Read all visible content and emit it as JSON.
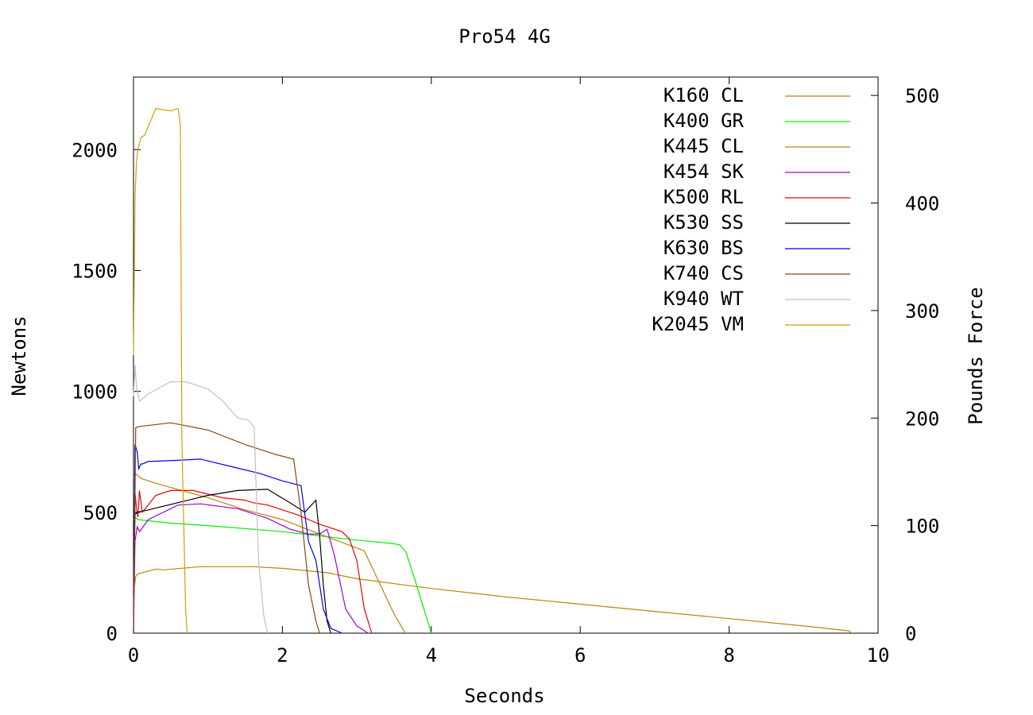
{
  "chart_data": {
    "type": "line",
    "title": "Pro54 4G",
    "xlabel": "Seconds",
    "ylabel": "Newtons",
    "y2label": "Pounds Force",
    "xlim": [
      0,
      10
    ],
    "ylim": [
      0,
      2300
    ],
    "y2lim": [
      0,
      517.1
    ],
    "xticks": [
      0,
      2,
      4,
      6,
      8,
      10
    ],
    "yticks": [
      0,
      500,
      1000,
      1500,
      2000
    ],
    "y2ticks": [
      0,
      100,
      200,
      300,
      400,
      500
    ],
    "grid": false,
    "legend_position": "top-right",
    "series": [
      {
        "name": "K160 CL",
        "color": "#b8860b",
        "x": [
          0,
          0.03,
          0.06,
          0.3,
          0.4,
          0.9,
          1.6,
          2.0,
          2.6,
          3.0,
          4.0,
          5.0,
          6.0,
          7.0,
          8.0,
          9.0,
          9.6,
          9.65
        ],
        "y": [
          170,
          235,
          245,
          265,
          262,
          275,
          275,
          268,
          250,
          225,
          185,
          150,
          120,
          90,
          60,
          30,
          10,
          0
        ]
      },
      {
        "name": "K400 GR",
        "color": "#00ee00",
        "x": [
          0,
          0.03,
          0.06,
          0.5,
          1.0,
          2.0,
          3.0,
          3.5,
          3.58,
          3.66,
          3.8,
          4.0
        ],
        "y": [
          470,
          478,
          470,
          455,
          445,
          420,
          385,
          370,
          365,
          335,
          200,
          0
        ]
      },
      {
        "name": "K445 CL",
        "color": "#b8860b",
        "x": [
          0,
          0.03,
          0.1,
          0.3,
          1.0,
          1.5,
          2.0,
          2.5,
          3.1,
          3.3,
          3.5,
          3.65
        ],
        "y": [
          645,
          660,
          640,
          620,
          560,
          510,
          470,
          410,
          340,
          210,
          80,
          0
        ]
      },
      {
        "name": "K454 SK",
        "color": "#a000d0",
        "x": [
          0,
          0.02,
          0.05,
          0.08,
          0.2,
          0.6,
          0.9,
          1.4,
          1.8,
          2.1,
          2.35,
          2.5,
          2.6,
          2.7,
          2.85,
          3.0,
          3.1,
          3.15
        ],
        "y": [
          0,
          380,
          440,
          420,
          470,
          530,
          535,
          515,
          475,
          430,
          410,
          410,
          430,
          320,
          100,
          30,
          10,
          0
        ]
      },
      {
        "name": "K500 RL",
        "color": "#ee0000",
        "x": [
          0,
          0.02,
          0.04,
          0.06,
          0.08,
          0.1,
          0.12,
          0.3,
          0.5,
          0.8,
          1.2,
          1.5,
          1.6,
          1.8,
          2.2,
          2.5,
          2.8,
          2.9,
          3.0,
          3.1,
          3.2
        ],
        "y": [
          0,
          580,
          520,
          480,
          590,
          540,
          500,
          570,
          590,
          590,
          560,
          550,
          540,
          530,
          490,
          450,
          420,
          390,
          300,
          100,
          0
        ]
      },
      {
        "name": "K530 SS",
        "color": "#000000",
        "x": [
          0,
          0.02,
          0.05,
          0.2,
          0.6,
          1.0,
          1.4,
          1.8,
          2.1,
          2.3,
          2.45,
          2.5,
          2.55,
          2.6,
          2.65
        ],
        "y": [
          160,
          490,
          500,
          510,
          540,
          570,
          590,
          595,
          540,
          500,
          550,
          400,
          200,
          50,
          0
        ]
      },
      {
        "name": "K630 BS",
        "color": "#0000ee",
        "x": [
          0,
          0.02,
          0.05,
          0.07,
          0.1,
          0.12,
          0.2,
          0.6,
          0.9,
          1.3,
          1.7,
          2.0,
          2.25,
          2.35,
          2.45,
          2.55,
          2.65,
          2.8
        ],
        "y": [
          0,
          780,
          750,
          680,
          700,
          700,
          710,
          715,
          720,
          690,
          660,
          630,
          610,
          380,
          300,
          100,
          20,
          0
        ]
      },
      {
        "name": "K740 CS",
        "color": "#8b4513",
        "x": [
          0,
          0.03,
          0.08,
          0.5,
          1.0,
          1.5,
          1.9,
          2.15,
          2.25,
          2.35,
          2.45,
          2.5
        ],
        "y": [
          0,
          850,
          855,
          870,
          840,
          780,
          740,
          720,
          500,
          200,
          50,
          0
        ]
      },
      {
        "name": "K940 WT",
        "color": "#c0c0c0",
        "x": [
          0,
          0.02,
          0.04,
          0.08,
          0.2,
          0.5,
          0.7,
          1.0,
          1.2,
          1.4,
          1.55,
          1.62,
          1.68,
          1.75,
          1.8
        ],
        "y": [
          980,
          1110,
          1020,
          960,
          990,
          1040,
          1040,
          1010,
          960,
          890,
          880,
          850,
          300,
          70,
          0
        ]
      },
      {
        "name": "K2045 VM",
        "color": "#d4a000",
        "x": [
          0,
          0.02,
          0.04,
          0.06,
          0.1,
          0.15,
          0.3,
          0.5,
          0.6,
          0.63,
          0.65,
          0.7,
          0.72
        ],
        "y": [
          1150,
          1800,
          1950,
          2000,
          2050,
          2060,
          2170,
          2160,
          2170,
          2100,
          800,
          100,
          0
        ]
      }
    ]
  }
}
